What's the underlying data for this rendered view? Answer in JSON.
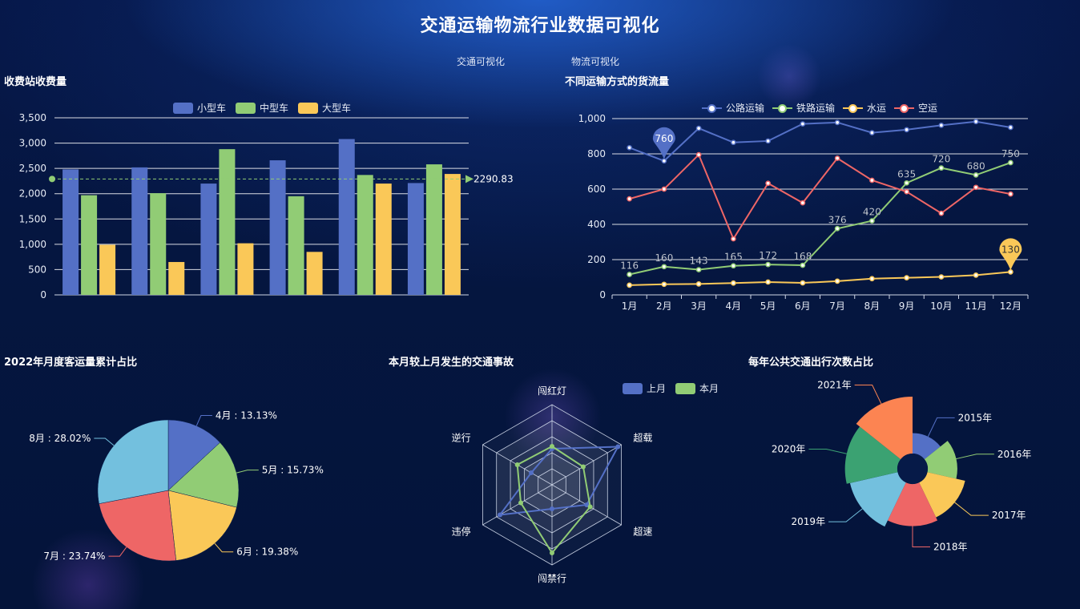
{
  "header": {
    "title": "交通运输物流行业数据可视化",
    "nav": [
      "交通可视化",
      "物流可视化"
    ]
  },
  "colors": {
    "blue": "#5470c6",
    "green": "#91cc75",
    "yellow": "#fac858",
    "red": "#ee6666",
    "cyan": "#73c0de",
    "teal": "#3ba272",
    "orange": "#fc8452"
  },
  "chart_data": [
    {
      "type": "bar",
      "title": "收费站收费量",
      "categories": [
        "",
        "",
        "",
        "",
        "",
        ""
      ],
      "series": [
        {
          "name": "小型车",
          "values": [
            2480,
            2520,
            2200,
            2660,
            3080,
            2210
          ]
        },
        {
          "name": "中型车",
          "values": [
            1970,
            2010,
            2880,
            1950,
            2370,
            2580
          ]
        },
        {
          "name": "大型车",
          "values": [
            990,
            650,
            1020,
            850,
            2200,
            2390
          ]
        }
      ],
      "ylim": [
        0,
        3500
      ],
      "yticks": [
        "0",
        "500",
        "1,000",
        "1,500",
        "2,000",
        "2,500",
        "3,000",
        "3,500"
      ],
      "average": 2290.83,
      "average_label": "2290.83",
      "grid": true,
      "legend": "top-center"
    },
    {
      "type": "line",
      "title": "不同运输方式的货流量",
      "categories": [
        "1月",
        "2月",
        "3月",
        "4月",
        "5月",
        "6月",
        "7月",
        "8月",
        "9月",
        "10月",
        "11月",
        "12月"
      ],
      "series": [
        {
          "name": "公路运输",
          "values": [
            835,
            760,
            945,
            865,
            873,
            970,
            978,
            920,
            937,
            962,
            983,
            950
          ]
        },
        {
          "name": "铁路运输",
          "values": [
            116,
            160,
            143,
            165,
            172,
            168,
            376,
            420,
            635,
            720,
            680,
            750
          ]
        },
        {
          "name": "水运",
          "values": [
            55,
            60,
            62,
            67,
            73,
            68,
            78,
            92,
            97,
            102,
            112,
            130
          ]
        },
        {
          "name": "空运",
          "values": [
            545,
            600,
            795,
            318,
            633,
            522,
            775,
            650,
            585,
            463,
            610,
            572
          ]
        }
      ],
      "ylim": [
        0,
        1000
      ],
      "yticks": [
        "0",
        "200",
        "400",
        "600",
        "800",
        "1,000"
      ],
      "pins": [
        {
          "series": 0,
          "index": 1,
          "label": "760"
        },
        {
          "series": 2,
          "index": 11,
          "label": "130"
        }
      ],
      "data_labels": [
        "116",
        "160",
        "143",
        "165",
        "172",
        "168",
        "376",
        "420",
        "635",
        "720",
        "680",
        "750"
      ],
      "grid": true,
      "legend": "top-center"
    },
    {
      "type": "pie",
      "title": "2022年月度客运量累计占比",
      "slices": [
        {
          "label": "4月 : 13.13%",
          "value": 13.13
        },
        {
          "label": "5月 : 15.73%",
          "value": 15.73
        },
        {
          "label": "6月 : 19.38%",
          "value": 19.38
        },
        {
          "label": "7月 : 23.74%",
          "value": 23.74
        },
        {
          "label": "8月 : 28.02%",
          "value": 28.02
        }
      ]
    },
    {
      "type": "radar",
      "title": "本月较上月发生的交通事故",
      "indicators": [
        "闯红灯",
        "超载",
        "超速",
        "闯禁行",
        "违停",
        "逆行"
      ],
      "max": 100,
      "series": [
        {
          "name": "上月",
          "values": [
            45,
            95,
            50,
            30,
            75,
            30
          ]
        },
        {
          "name": "本月",
          "values": [
            48,
            45,
            55,
            85,
            45,
            50
          ]
        }
      ],
      "legend": "top-right"
    },
    {
      "type": "pie",
      "subtype": "rose",
      "title": "每年公共交通出行次数占比",
      "slices": [
        {
          "label": "2015年",
          "value": 36
        },
        {
          "label": "2016年",
          "value": 52
        },
        {
          "label": "2017年",
          "value": 68
        },
        {
          "label": "2018年",
          "value": 74
        },
        {
          "label": "2019年",
          "value": 86
        },
        {
          "label": "2020年",
          "value": 92
        },
        {
          "label": "2021年",
          "value": 100
        }
      ]
    }
  ]
}
